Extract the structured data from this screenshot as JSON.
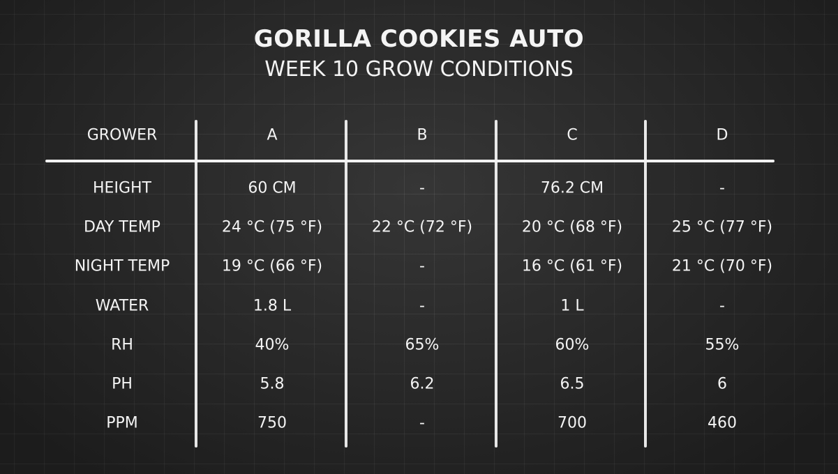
{
  "title": "GORILLA COOKIES AUTO",
  "subtitle": "WEEK 10 GROW CONDITIONS",
  "chart_data": {
    "type": "table",
    "title": "GORILLA COOKIES AUTO",
    "subtitle": "WEEK 10 GROW CONDITIONS",
    "columns": [
      "GROWER",
      "A",
      "B",
      "C",
      "D"
    ],
    "rows": [
      [
        "HEIGHT",
        "60 CM",
        "-",
        "76.2 CM",
        "-"
      ],
      [
        "DAY TEMP",
        "24 °C (75 °F)",
        "22 °C (72 °F)",
        "20 °C (68 °F)",
        "25 °C (77 °F)"
      ],
      [
        "NIGHT TEMP",
        "19 °C (66 °F)",
        "-",
        "16 °C (61 °F)",
        "21 °C (70 °F)"
      ],
      [
        "WATER",
        "1.8 L",
        "-",
        "1 L",
        "-"
      ],
      [
        "RH",
        "40%",
        "65%",
        "60%",
        "55%"
      ],
      [
        "PH",
        "5.8",
        "6.2",
        "6.5",
        "6"
      ],
      [
        "PPM",
        "750",
        "-",
        "700",
        "460"
      ]
    ]
  }
}
